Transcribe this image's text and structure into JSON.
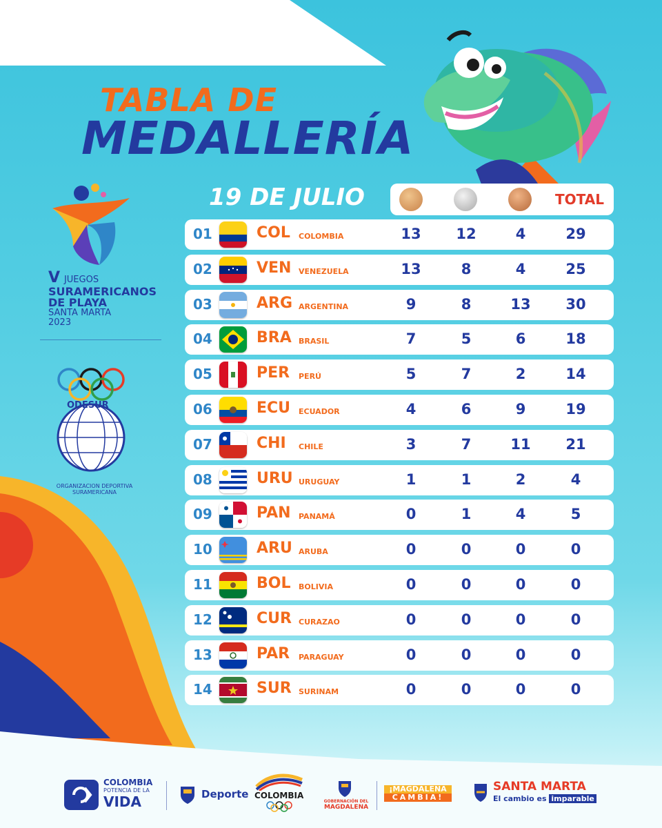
{
  "title": {
    "line1": "TABLA DE",
    "line2": "MEDALLERÍA"
  },
  "date": "19 DE JULIO",
  "header": {
    "total": "TOTAL"
  },
  "event": {
    "numeral": "V",
    "line1": "JUEGOS",
    "line2": "SURAMERICANOS",
    "line3": "DE PLAYA",
    "line4": "SANTA MARTA",
    "line5": "2023"
  },
  "odesur": {
    "acronym": "ODESUR",
    "full": "ORGANIZACION DEPORTIVA SURAMERICANA"
  },
  "rows": [
    {
      "rank": "01",
      "code": "COL",
      "name": "COLOMBIA",
      "gold": "13",
      "silver": "12",
      "bronze": "4",
      "total": "29"
    },
    {
      "rank": "02",
      "code": "VEN",
      "name": "VENEZUELA",
      "gold": "13",
      "silver": "8",
      "bronze": "4",
      "total": "25"
    },
    {
      "rank": "03",
      "code": "ARG",
      "name": "ARGENTINA",
      "gold": "9",
      "silver": "8",
      "bronze": "13",
      "total": "30"
    },
    {
      "rank": "04",
      "code": "BRA",
      "name": "BRASIL",
      "gold": "7",
      "silver": "5",
      "bronze": "6",
      "total": "18"
    },
    {
      "rank": "05",
      "code": "PER",
      "name": "PERÚ",
      "gold": "5",
      "silver": "7",
      "bronze": "2",
      "total": "14"
    },
    {
      "rank": "06",
      "code": "ECU",
      "name": "ECUADOR",
      "gold": "4",
      "silver": "6",
      "bronze": "9",
      "total": "19"
    },
    {
      "rank": "07",
      "code": "CHI",
      "name": "CHILE",
      "gold": "3",
      "silver": "7",
      "bronze": "11",
      "total": "21"
    },
    {
      "rank": "08",
      "code": "URU",
      "name": "URUGUAY",
      "gold": "1",
      "silver": "1",
      "bronze": "2",
      "total": "4"
    },
    {
      "rank": "09",
      "code": "PAN",
      "name": "PANAMÁ",
      "gold": "0",
      "silver": "1",
      "bronze": "4",
      "total": "5"
    },
    {
      "rank": "10",
      "code": "ARU",
      "name": "ARUBA",
      "gold": "0",
      "silver": "0",
      "bronze": "0",
      "total": "0"
    },
    {
      "rank": "11",
      "code": "BOL",
      "name": "BOLIVIA",
      "gold": "0",
      "silver": "0",
      "bronze": "0",
      "total": "0"
    },
    {
      "rank": "12",
      "code": "CUR",
      "name": "CURAZAO",
      "gold": "0",
      "silver": "0",
      "bronze": "0",
      "total": "0"
    },
    {
      "rank": "13",
      "code": "PAR",
      "name": "PARAGUAY",
      "gold": "0",
      "silver": "0",
      "bronze": "0",
      "total": "0"
    },
    {
      "rank": "14",
      "code": "SUR",
      "name": "SURINAM",
      "gold": "0",
      "silver": "0",
      "bronze": "0",
      "total": "0"
    }
  ],
  "footer": {
    "colombia_vida": {
      "line1": "COLOMBIA",
      "line2": "POTENCIA DE LA",
      "line3": "VIDA"
    },
    "deporte": "Deporte",
    "colombia_olimpico": "COLOMBIA",
    "gobernacion": {
      "line1": "GOBERNACIÓN DEL",
      "line2": "MAGDALENA"
    },
    "magdalena": {
      "line1": "¡MAGDALENA",
      "line2": "CAMBIA!"
    },
    "santa_marta": {
      "line1": "SANTA MARTA",
      "line2a": "El cambio es",
      "line2b": "imparable"
    }
  },
  "colors": {
    "orange": "#f26b1d",
    "navy": "#233a9f",
    "rank_blue": "#2f86c8",
    "total_red": "#e23b2a"
  }
}
